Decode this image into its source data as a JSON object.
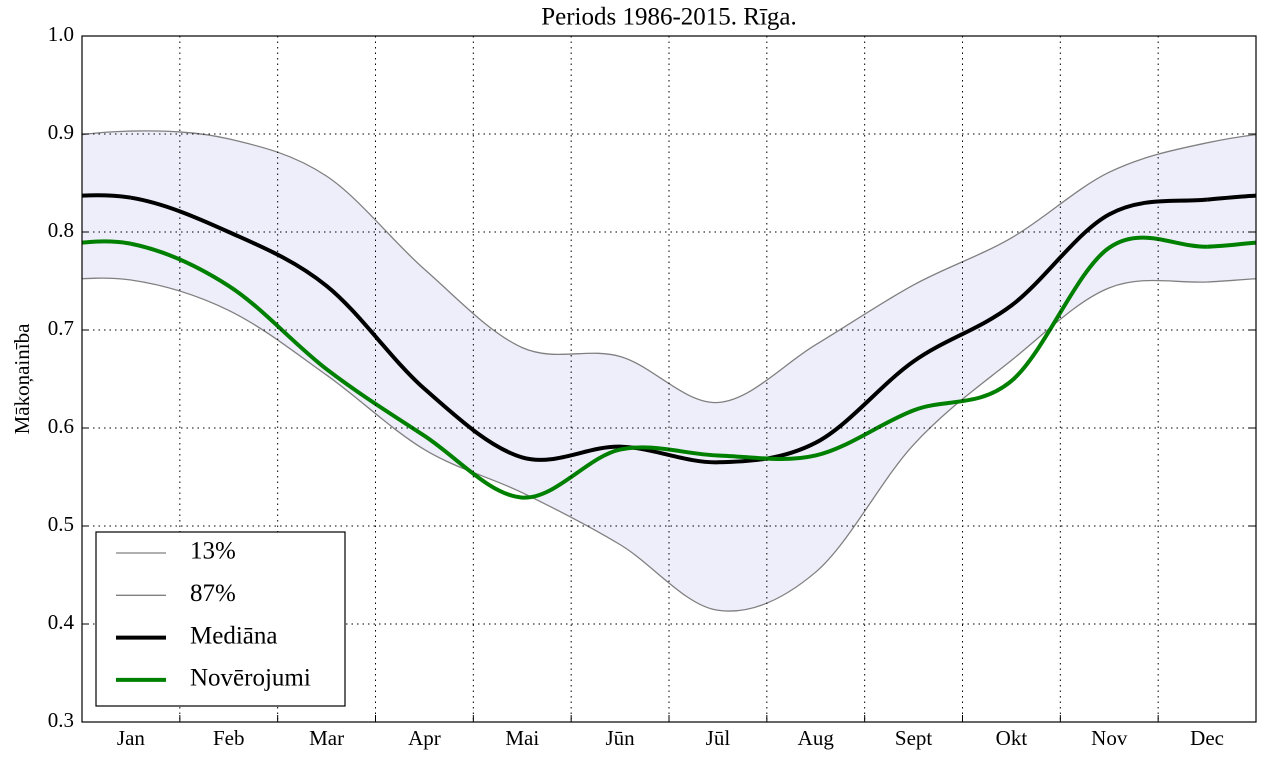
{
  "chart_data": {
    "type": "line",
    "title": "Periods 1986-2015. Rīga.",
    "ylabel": "Mākoņainība",
    "categories": [
      "Jan",
      "Feb",
      "Mar",
      "Apr",
      "Mai",
      "Jūn",
      "Jūl",
      "Aug",
      "Sept",
      "Okt",
      "Nov",
      "Dec"
    ],
    "series": [
      {
        "name": "13%",
        "color": "#808080",
        "values": [
          0.751,
          0.72,
          0.654,
          0.578,
          0.534,
          0.481,
          0.414,
          0.453,
          0.583,
          0.669,
          0.743,
          0.749
        ]
      },
      {
        "name": "87%",
        "color": "#808080",
        "values": [
          0.903,
          0.895,
          0.857,
          0.762,
          0.682,
          0.673,
          0.626,
          0.685,
          0.746,
          0.794,
          0.861,
          0.891
        ]
      },
      {
        "name": "Mediāna",
        "color": "#000000",
        "values": [
          0.835,
          0.8,
          0.745,
          0.64,
          0.57,
          0.581,
          0.565,
          0.585,
          0.668,
          0.725,
          0.818,
          0.833
        ]
      },
      {
        "name": "Novērojumi",
        "color": "#008000",
        "values": [
          0.788,
          0.745,
          0.66,
          0.592,
          0.529,
          0.578,
          0.572,
          0.572,
          0.618,
          0.648,
          0.784,
          0.785
        ]
      }
    ],
    "band_color": "#eeeefb",
    "ylim": [
      0.3,
      1.0
    ],
    "yticks": [
      0.3,
      0.4,
      0.5,
      0.6,
      0.7,
      0.8,
      0.9,
      {
        "value": 1.0,
        "label": "1.0"
      }
    ],
    "grid": true,
    "legend": "lower left"
  }
}
